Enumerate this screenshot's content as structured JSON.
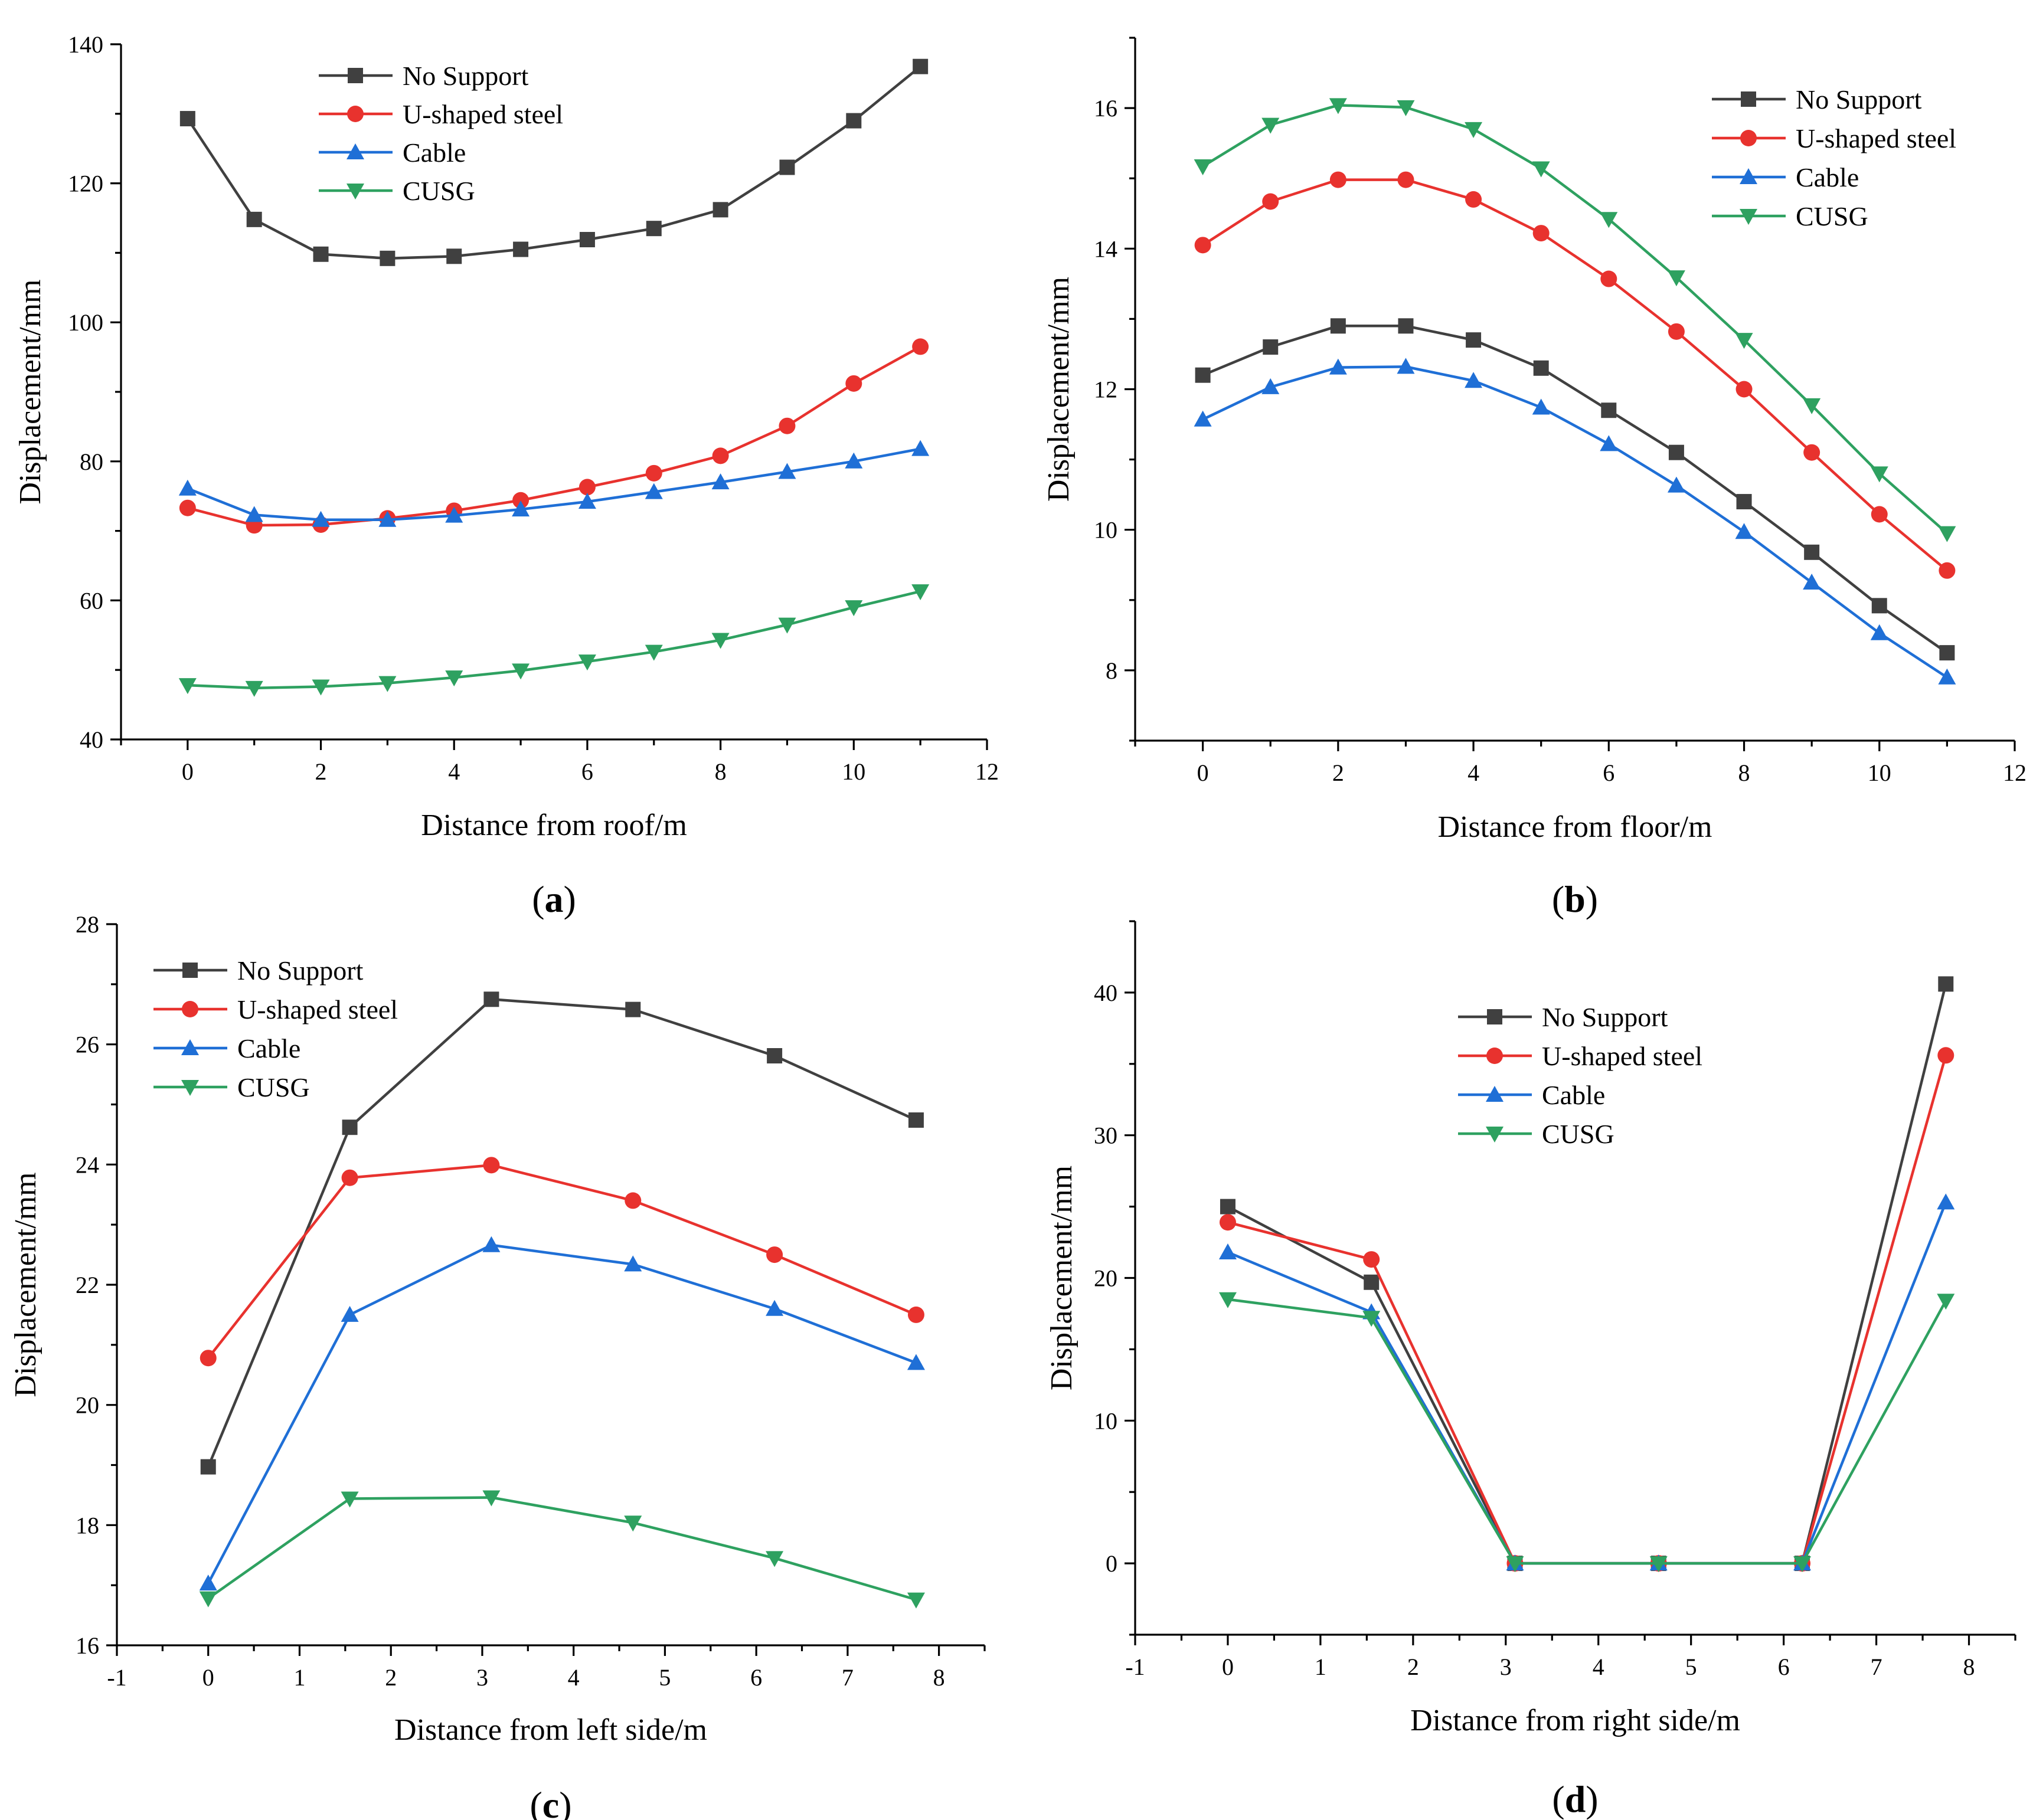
{
  "series_styles": [
    {
      "name": "No Support",
      "color": "#404040",
      "marker": "square"
    },
    {
      "name": "U-shaped steel",
      "color": "#e8322e",
      "marker": "circle"
    },
    {
      "name": "Cable",
      "color": "#1f6fd6",
      "marker": "triangle-up"
    },
    {
      "name": "CUSG",
      "color": "#2ea160",
      "marker": "triangle-down"
    }
  ],
  "chart_data": [
    {
      "type": "line",
      "panel_label": "a",
      "xlabel": "Distance from roof/m",
      "ylabel": "Displacement/mm",
      "xlim": [
        -1,
        12
      ],
      "ylim": [
        40,
        140
      ],
      "xticks": [
        0,
        2,
        4,
        6,
        8,
        10,
        12
      ],
      "yticks": [
        40,
        60,
        80,
        100,
        120,
        140
      ],
      "legend_position": "top-center",
      "x": [
        0,
        1,
        2,
        3,
        4,
        5,
        6,
        7,
        8,
        9,
        10,
        11
      ],
      "series": [
        {
          "name": "No Support",
          "values": [
            129.3,
            114.8,
            109.8,
            109.2,
            109.5,
            110.5,
            111.9,
            113.5,
            116.2,
            122.3,
            129.0,
            136.8
          ]
        },
        {
          "name": "U-shaped steel",
          "values": [
            73.3,
            70.8,
            70.9,
            71.8,
            72.9,
            74.4,
            76.3,
            78.3,
            80.8,
            85.1,
            91.2,
            96.5
          ]
        },
        {
          "name": "Cable",
          "values": [
            76.1,
            72.3,
            71.6,
            71.6,
            72.2,
            73.1,
            74.2,
            75.6,
            77.0,
            78.5,
            80.0,
            81.8
          ]
        },
        {
          "name": "CUSG",
          "values": [
            47.8,
            47.4,
            47.6,
            48.1,
            48.9,
            49.9,
            51.2,
            52.6,
            54.3,
            56.5,
            59.0,
            61.3
          ]
        }
      ]
    },
    {
      "type": "line",
      "panel_label": "b",
      "xlabel": "Distance from floor/m",
      "ylabel": "Displacement/mm",
      "xlim": [
        -1,
        12
      ],
      "ylim": [
        7,
        17
      ],
      "xticks": [
        0,
        2,
        4,
        6,
        8,
        10,
        12
      ],
      "yticks": [
        8,
        10,
        12,
        14,
        16
      ],
      "legend_position": "top-right",
      "x": [
        0,
        1,
        2,
        3,
        4,
        5,
        6,
        7,
        8,
        9,
        10,
        11
      ],
      "series": [
        {
          "name": "No Support",
          "values": [
            12.2,
            12.6,
            12.9,
            12.9,
            12.7,
            12.3,
            11.7,
            11.1,
            10.4,
            9.68,
            8.92,
            8.25
          ]
        },
        {
          "name": "U-shaped steel",
          "values": [
            14.05,
            14.67,
            14.98,
            14.98,
            14.7,
            14.22,
            13.57,
            12.82,
            12.0,
            11.1,
            10.22,
            9.42
          ]
        },
        {
          "name": "Cable",
          "values": [
            11.57,
            12.03,
            12.31,
            12.32,
            12.12,
            11.74,
            11.22,
            10.63,
            9.97,
            9.25,
            8.53,
            7.9
          ]
        },
        {
          "name": "CUSG",
          "values": [
            15.17,
            15.76,
            16.04,
            16.01,
            15.7,
            15.14,
            14.42,
            13.59,
            12.7,
            11.77,
            10.8,
            9.95
          ]
        }
      ]
    },
    {
      "type": "line",
      "panel_label": "c",
      "xlabel": "Distance from left side/m",
      "ylabel": "Displacement/mm",
      "xlim": [
        -1,
        8.5
      ],
      "ylim": [
        16,
        28
      ],
      "xticks": [
        -1,
        0,
        1,
        2,
        3,
        4,
        5,
        6,
        7,
        8
      ],
      "yticks": [
        16,
        18,
        20,
        22,
        24,
        26,
        28
      ],
      "legend_position": "top-left",
      "x": [
        0,
        1.55,
        3.1,
        4.65,
        6.2,
        7.75
      ],
      "series": [
        {
          "name": "No Support",
          "values": [
            18.97,
            24.62,
            26.75,
            26.58,
            25.81,
            24.74
          ]
        },
        {
          "name": "U-shaped steel",
          "values": [
            20.78,
            23.78,
            23.99,
            23.4,
            22.5,
            21.5
          ]
        },
        {
          "name": "Cable",
          "values": [
            17.03,
            21.5,
            22.66,
            22.34,
            21.6,
            20.7
          ]
        },
        {
          "name": "CUSG",
          "values": [
            16.78,
            18.44,
            18.46,
            18.04,
            17.45,
            16.76
          ]
        }
      ]
    },
    {
      "type": "line",
      "panel_label": "d",
      "xlabel": "Distance from right side/m",
      "ylabel": "Displacement/mm",
      "xlim": [
        -1,
        8.5
      ],
      "ylim": [
        -5,
        45
      ],
      "xticks": [
        -1,
        0,
        1,
        2,
        3,
        4,
        5,
        6,
        7,
        8
      ],
      "yticks": [
        0,
        10,
        20,
        30,
        40
      ],
      "legend_position": "top-center",
      "x": [
        0,
        1.55,
        3.1,
        4.65,
        6.2,
        7.75
      ],
      "series": [
        {
          "name": "No Support",
          "values": [
            25.0,
            19.7,
            0,
            0,
            0,
            40.6
          ]
        },
        {
          "name": "U-shaped steel",
          "values": [
            23.9,
            21.3,
            0,
            0,
            0,
            35.6
          ]
        },
        {
          "name": "Cable",
          "values": [
            21.8,
            17.6,
            0,
            0,
            0,
            25.3
          ]
        },
        {
          "name": "CUSG",
          "values": [
            18.5,
            17.2,
            0,
            0,
            0,
            18.4
          ]
        }
      ]
    }
  ]
}
